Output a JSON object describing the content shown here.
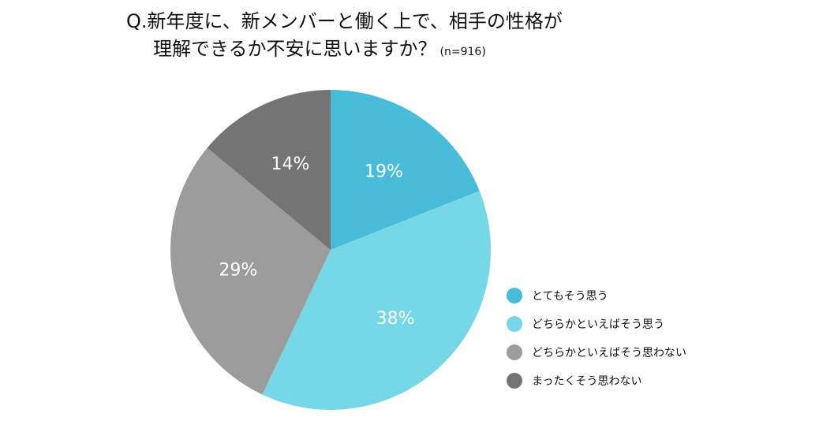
{
  "title": {
    "line1": "Q.新年度に、新メンバーと働く上で、相手の性格が",
    "line2": "理解できるか不安に思いますか？",
    "sample": "(n=916)"
  },
  "chart_data": {
    "type": "pie",
    "slices": [
      {
        "label": "とてもそう思う",
        "value": 19,
        "value_label": "19%",
        "color": "#48bcd9"
      },
      {
        "label": "どちらかといえばそう思う",
        "value": 38,
        "value_label": "38%",
        "color": "#76d8e7"
      },
      {
        "label": "どちらかといえばそう思わない",
        "value": 29,
        "value_label": "29%",
        "color": "#9c9c9c"
      },
      {
        "label": "まったくそう思わない",
        "value": 14,
        "value_label": "14%",
        "color": "#747474"
      }
    ],
    "start": "12 o'clock",
    "direction": "clockwise",
    "legend_position": "right-bottom"
  }
}
